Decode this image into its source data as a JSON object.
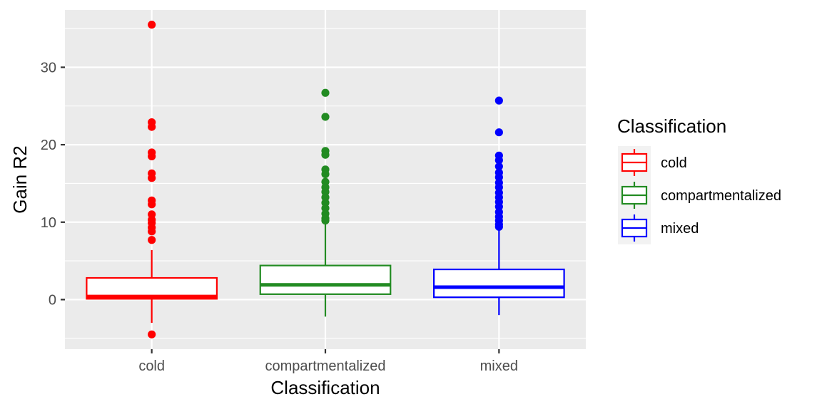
{
  "chart_data": {
    "type": "boxplot",
    "title": "",
    "xlabel": "Classification",
    "ylabel": "Gain R2",
    "ylim": [
      -6.4,
      37.4
    ],
    "yticks": [
      0,
      10,
      20,
      30
    ],
    "grid": true,
    "legend_position": "right",
    "legend_title": "Classification",
    "categories": [
      "cold",
      "compartmentalized",
      "mixed"
    ],
    "series": [
      {
        "name": "cold",
        "color": "#FF0000",
        "whisker_low": -3.0,
        "q1": 0.1,
        "median": 0.4,
        "q3": 2.8,
        "whisker_high": 6.4,
        "outliers": [
          35.5,
          22.9,
          22.3,
          19.0,
          18.5,
          16.3,
          15.7,
          12.8,
          12.3,
          11.0,
          10.3,
          9.9,
          9.3,
          8.8,
          7.7,
          -4.5
        ]
      },
      {
        "name": "compartmentalized",
        "color": "#228B22",
        "whisker_low": -2.2,
        "q1": 0.7,
        "median": 1.9,
        "q3": 4.4,
        "whisker_high": 9.8,
        "outliers": [
          26.7,
          23.6,
          19.2,
          18.7,
          16.8,
          16.2,
          15.2,
          14.5,
          13.9,
          13.2,
          12.5,
          11.8,
          11.1,
          10.5,
          10.2
        ]
      },
      {
        "name": "mixed",
        "color": "#0000FF",
        "whisker_low": -2.0,
        "q1": 0.3,
        "median": 1.6,
        "q3": 3.9,
        "whisker_high": 9.2,
        "outliers": [
          25.7,
          21.6,
          18.6,
          18.0,
          17.2,
          16.4,
          15.8,
          15.1,
          14.5,
          13.8,
          13.2,
          12.6,
          12.0,
          11.3,
          10.7,
          10.2,
          9.7,
          9.4
        ]
      }
    ]
  }
}
